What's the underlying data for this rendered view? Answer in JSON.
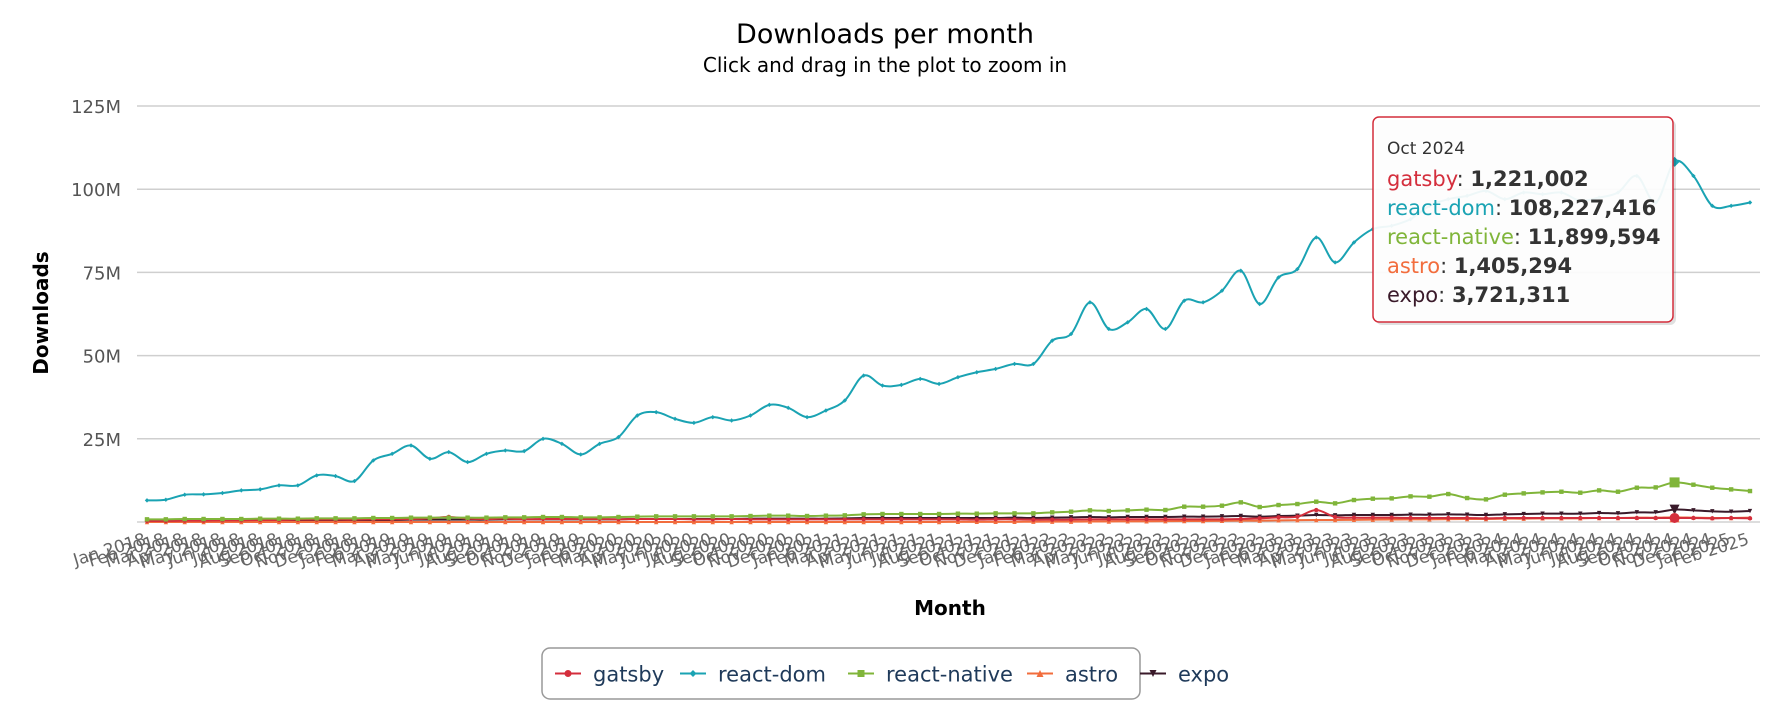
{
  "chart_data": {
    "type": "line",
    "title": "Downloads per month",
    "subtitle": "Click and drag in the plot to zoom in",
    "xlabel": "Month",
    "ylabel": "Downloads",
    "ylim": [
      0,
      125000000
    ],
    "yticks": [
      {
        "value": 25000000,
        "label": "25M"
      },
      {
        "value": 50000000,
        "label": "50M"
      },
      {
        "value": 75000000,
        "label": "75M"
      },
      {
        "value": 100000000,
        "label": "100M"
      },
      {
        "value": 125000000,
        "label": "125M"
      }
    ],
    "grid": true,
    "legend_position": "bottom-center",
    "x": [
      "Jan 2018",
      "Feb 2018",
      "Mar 2018",
      "Apr 2018",
      "May 2018",
      "Jun 2018",
      "Jul 2018",
      "Aug 2018",
      "Sep 2018",
      "Oct 2018",
      "Nov 2018",
      "Dec 2018",
      "Jan 2019",
      "Feb 2019",
      "Mar 2019",
      "Apr 2019",
      "May 2019",
      "Jun 2019",
      "Jul 2019",
      "Aug 2019",
      "Sep 2019",
      "Oct 2019",
      "Nov 2019",
      "Dec 2019",
      "Jan 2020",
      "Feb 2020",
      "Mar 2020",
      "Apr 2020",
      "May 2020",
      "Jun 2020",
      "Jul 2020",
      "Aug 2020",
      "Sep 2020",
      "Oct 2020",
      "Nov 2020",
      "Dec 2020",
      "Jan 2021",
      "Feb 2021",
      "Mar 2021",
      "Apr 2021",
      "May 2021",
      "Jun 2021",
      "Jul 2021",
      "Aug 2021",
      "Sep 2021",
      "Oct 2021",
      "Nov 2021",
      "Dec 2021",
      "Jan 2022",
      "Feb 2022",
      "Mar 2022",
      "Apr 2022",
      "May 2022",
      "Jun 2022",
      "Jul 2022",
      "Aug 2022",
      "Sep 2022",
      "Oct 2022",
      "Nov 2022",
      "Dec 2022",
      "Jan 2023",
      "Feb 2023",
      "Mar 2023",
      "Apr 2023",
      "May 2023",
      "Jun 2023",
      "Jul 2023",
      "Aug 2023",
      "Sep 2023",
      "Oct 2023",
      "Nov 2023",
      "Dec 2023",
      "Jan 2024",
      "Feb 2024",
      "Mar 2024",
      "Apr 2024",
      "May 2024",
      "Jun 2024",
      "Jul 2024",
      "Aug 2024",
      "Sep 2024",
      "Oct 2024",
      "Nov 2024",
      "Dec 2024",
      "Jan 2025",
      "Feb 2025"
    ],
    "series": [
      {
        "name": "gatsby",
        "color": "#d42e3c",
        "marker": "circle",
        "values": [
          0.3,
          0.3,
          0.4,
          0.4,
          0.5,
          0.5,
          0.6,
          0.6,
          0.7,
          0.7,
          0.7,
          0.7,
          0.8,
          0.8,
          0.9,
          1.1,
          1.5,
          1.0,
          0.9,
          1.0,
          0.8,
          0.9,
          0.9,
          0.9,
          0.9,
          0.8,
          0.9,
          0.9,
          0.9,
          0.8,
          0.8,
          0.9,
          0.8,
          0.8,
          0.8,
          0.8,
          0.8,
          0.8,
          0.8,
          0.8,
          0.8,
          0.8,
          0.8,
          0.8,
          0.7,
          0.8,
          0.8,
          0.7,
          0.7,
          0.7,
          0.8,
          0.8,
          0.8,
          0.8,
          0.8,
          0.8,
          0.8,
          0.8,
          0.9,
          1.1,
          1.4,
          1.6,
          3.6,
          1.5,
          1.3,
          1.3,
          1.3,
          1.2,
          1.2,
          1.2,
          1.2,
          1.1,
          1.2,
          1.2,
          1.2,
          1.2,
          1.2,
          1.2,
          1.2,
          1.2,
          1.2,
          1.22,
          1.2,
          1.1,
          1.2,
          1.1
        ]
      },
      {
        "name": "react-dom",
        "color": "#1aa3b3",
        "marker": "diamond",
        "values": [
          6.5,
          6.7,
          8.2,
          8.3,
          8.7,
          9.5,
          9.8,
          11.0,
          11.0,
          14.0,
          13.8,
          12.3,
          18.5,
          20.5,
          23.0,
          19.0,
          21.0,
          18.0,
          20.5,
          21.5,
          21.3,
          25.0,
          23.5,
          20.3,
          23.5,
          25.5,
          32.0,
          33.0,
          31.0,
          29.8,
          31.5,
          30.5,
          32.0,
          35.2,
          34.3,
          31.5,
          33.5,
          36.5,
          44.0,
          41.0,
          41.2,
          43.0,
          41.5,
          43.5,
          45.0,
          46.0,
          47.5,
          47.5,
          54.5,
          56.5,
          66.0,
          58.0,
          60.0,
          64.0,
          58.0,
          66.5,
          66.0,
          69.5,
          75.5,
          65.5,
          73.5,
          76.0,
          85.5,
          78.0,
          84.0,
          88.0,
          89.0,
          91.0,
          95.0,
          97.0,
          98.0,
          99.5,
          97.0,
          99.0,
          98.5,
          99.0,
          96.5,
          97.5,
          99.0,
          104.0,
          96.0,
          108.227,
          104.0,
          95.0,
          95.0,
          96.0
        ]
      },
      {
        "name": "react-native",
        "color": "#80b53a",
        "marker": "square",
        "values": [
          0.8,
          0.8,
          0.9,
          0.9,
          0.9,
          0.9,
          1.0,
          1.0,
          1.0,
          1.1,
          1.1,
          1.1,
          1.2,
          1.2,
          1.3,
          1.3,
          1.3,
          1.3,
          1.3,
          1.4,
          1.4,
          1.5,
          1.5,
          1.4,
          1.4,
          1.5,
          1.6,
          1.7,
          1.7,
          1.7,
          1.7,
          1.7,
          1.8,
          1.9,
          1.9,
          1.8,
          1.9,
          2.0,
          2.3,
          2.4,
          2.4,
          2.4,
          2.4,
          2.5,
          2.5,
          2.6,
          2.6,
          2.6,
          2.9,
          3.1,
          3.5,
          3.3,
          3.5,
          3.7,
          3.6,
          4.6,
          4.6,
          4.9,
          5.9,
          4.5,
          5.1,
          5.4,
          6.1,
          5.6,
          6.6,
          7.0,
          7.1,
          7.7,
          7.6,
          8.4,
          7.2,
          6.8,
          8.2,
          8.6,
          8.9,
          9.1,
          8.8,
          9.5,
          9.1,
          10.3,
          10.4,
          11.9,
          11.2,
          10.3,
          9.8,
          9.3
        ]
      },
      {
        "name": "astro",
        "color": "#f26d3d",
        "marker": "triangle",
        "values": [
          0,
          0,
          0,
          0,
          0,
          0,
          0,
          0,
          0,
          0,
          0,
          0,
          0,
          0,
          0,
          0,
          0,
          0,
          0,
          0,
          0,
          0,
          0,
          0,
          0,
          0,
          0,
          0,
          0,
          0,
          0,
          0,
          0,
          0,
          0,
          0,
          0,
          0,
          0,
          0,
          0,
          0,
          0,
          0.05,
          0.05,
          0.05,
          0.05,
          0.08,
          0.1,
          0.1,
          0.15,
          0.15,
          0.2,
          0.2,
          0.25,
          0.3,
          0.3,
          0.35,
          0.4,
          0.4,
          0.5,
          0.55,
          0.6,
          0.6,
          0.65,
          0.7,
          0.75,
          0.8,
          0.8,
          0.85,
          0.9,
          0.9,
          1.0,
          1.0,
          1.1,
          1.1,
          1.1,
          1.2,
          1.2,
          1.3,
          1.3,
          1.405,
          1.3,
          1.2,
          1.2,
          1.3
        ]
      },
      {
        "name": "expo",
        "color": "#3a1a2a",
        "marker": "triangle-down",
        "values": [
          0.5,
          0.5,
          0.5,
          0.5,
          0.6,
          0.6,
          0.6,
          0.6,
          0.6,
          0.6,
          0.6,
          0.6,
          0.6,
          0.6,
          0.7,
          0.7,
          0.7,
          0.7,
          0.7,
          0.8,
          0.8,
          0.8,
          0.8,
          0.8,
          0.8,
          0.8,
          0.9,
          0.9,
          0.9,
          0.9,
          0.9,
          0.9,
          1.0,
          1.0,
          1.0,
          1.0,
          1.0,
          1.1,
          1.2,
          1.2,
          1.2,
          1.2,
          1.2,
          1.2,
          1.2,
          1.2,
          1.3,
          1.2,
          1.3,
          1.4,
          1.5,
          1.4,
          1.5,
          1.5,
          1.5,
          1.6,
          1.6,
          1.7,
          1.8,
          1.6,
          1.8,
          1.9,
          2.1,
          2.0,
          2.1,
          2.1,
          2.1,
          2.2,
          2.2,
          2.3,
          2.2,
          2.1,
          2.3,
          2.4,
          2.5,
          2.5,
          2.5,
          2.7,
          2.6,
          2.9,
          2.9,
          3.721,
          3.5,
          3.2,
          3.1,
          3.3
        ]
      }
    ],
    "tooltip": {
      "header": "Oct 2024",
      "index": 81,
      "rows": [
        {
          "name": "gatsby",
          "value": "1,221,002",
          "color": "#d42e3c"
        },
        {
          "name": "react-dom",
          "value": "108,227,416",
          "color": "#1aa3b3"
        },
        {
          "name": "react-native",
          "value": "11,899,594",
          "color": "#80b53a"
        },
        {
          "name": "astro",
          "value": "1,405,294",
          "color": "#f26d3d"
        },
        {
          "name": "expo",
          "value": "3,721,311",
          "color": "#3a1a2a"
        }
      ],
      "border_color": "#d42e3c"
    },
    "y_scale": 1000000
  }
}
